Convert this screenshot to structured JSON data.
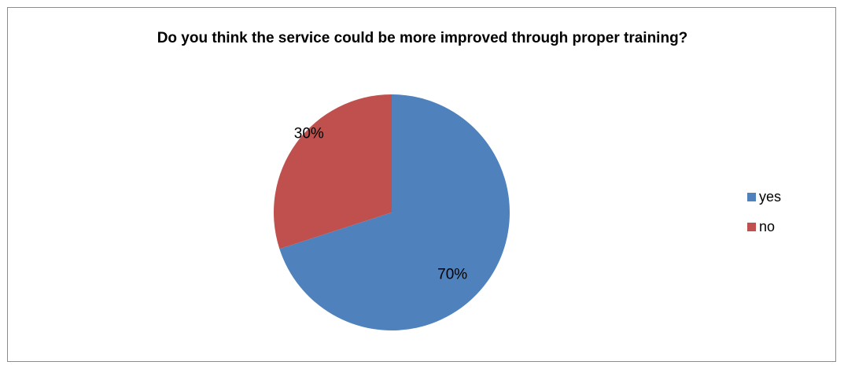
{
  "chart_data": {
    "type": "pie",
    "title": "Do you think the service could be more improved through proper training?",
    "categories": [
      "yes",
      "no"
    ],
    "values": [
      70,
      30
    ],
    "labels": [
      "70%",
      "30%"
    ],
    "colors": [
      "#4f81bd",
      "#c0504d"
    ],
    "legend_position": "right"
  }
}
